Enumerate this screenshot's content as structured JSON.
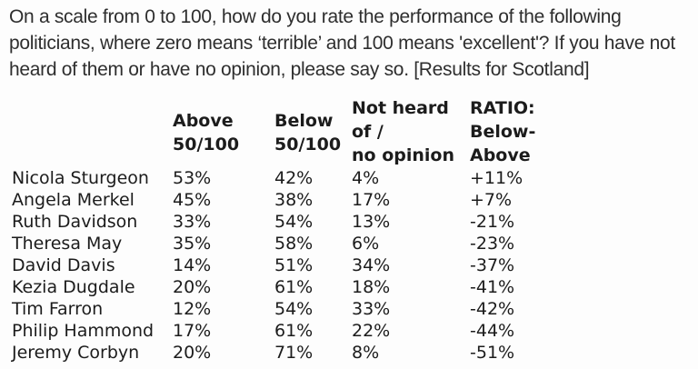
{
  "question": "On a scale from 0 to 100, how do you rate the performance of the following politicians, where zero means ‘terrible’ and 100 means 'excellent'? If you have not heard of them or have no opinion, please say so. [Results for Scotland]",
  "table": {
    "columns": {
      "politician": "",
      "above": "Above\n50/100",
      "below": "Below\n50/100",
      "not_heard": "Not heard\nof /\nno opinion",
      "ratio": "RATIO:\nBelow-\nAbove"
    },
    "rows": [
      {
        "name": "Nicola Sturgeon",
        "above": "53%",
        "below": "42%",
        "not_heard": "4%",
        "ratio": "+11%"
      },
      {
        "name": "Angela Merkel",
        "above": "45%",
        "below": "38%",
        "not_heard": "17%",
        "ratio": "+7%"
      },
      {
        "name": "Ruth Davidson",
        "above": "33%",
        "below": "54%",
        "not_heard": "13%",
        "ratio": "-21%"
      },
      {
        "name": "Theresa May",
        "above": "35%",
        "below": "58%",
        "not_heard": "6%",
        "ratio": "-23%"
      },
      {
        "name": "David Davis",
        "above": "14%",
        "below": "51%",
        "not_heard": "34%",
        "ratio": "-37%"
      },
      {
        "name": "Kezia Dugdale",
        "above": "20%",
        "below": "61%",
        "not_heard": "18%",
        "ratio": "-41%"
      },
      {
        "name": "Tim Farron",
        "above": "12%",
        "below": "54%",
        "not_heard": "33%",
        "ratio": "-42%"
      },
      {
        "name": "Philip Hammond",
        "above": "17%",
        "below": "61%",
        "not_heard": "22%",
        "ratio": "-44%"
      },
      {
        "name": "Jeremy Corbyn",
        "above": "20%",
        "below": "71%",
        "not_heard": "8%",
        "ratio": "-51%"
      }
    ]
  },
  "colors": {
    "background": "#fdfdfd",
    "question_text": "#2e2e2e",
    "table_text": "#1c1c1c"
  }
}
